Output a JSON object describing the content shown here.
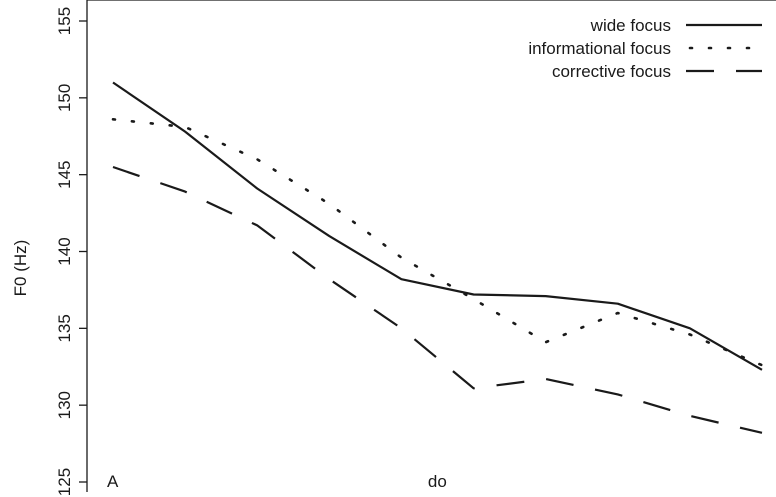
{
  "chart_data": {
    "type": "line",
    "title": "",
    "xlabel": "",
    "ylabel": "F0 (Hz)",
    "ylim": [
      125,
      155
    ],
    "yticks": [
      125,
      130,
      135,
      140,
      145,
      150,
      155
    ],
    "x": [
      1,
      2,
      3,
      4,
      5,
      6,
      7,
      8,
      9,
      10
    ],
    "segment_labels": [
      {
        "x": 1,
        "text": "A"
      },
      {
        "x": 5.45,
        "text": "do"
      }
    ],
    "legend": {
      "position": "top-right"
    },
    "grid": false,
    "series": [
      {
        "name": "wide focus",
        "line_style": "solid",
        "values": [
          151.0,
          147.8,
          144.1,
          141.0,
          138.2,
          137.2,
          137.1,
          136.6,
          135.0,
          132.3
        ]
      },
      {
        "name": "informational focus",
        "line_style": "dotted",
        "values": [
          148.6,
          148.1,
          146.0,
          143.1,
          139.6,
          136.9,
          134.1,
          136.0,
          134.6,
          132.6
        ]
      },
      {
        "name": "corrective focus",
        "line_style": "dashed",
        "values": [
          145.5,
          143.9,
          141.7,
          138.2,
          135.0,
          131.1,
          131.7,
          130.7,
          129.3,
          128.2
        ]
      }
    ]
  },
  "colors": {
    "line": "#1a1a1a",
    "background": "#ffffff"
  }
}
